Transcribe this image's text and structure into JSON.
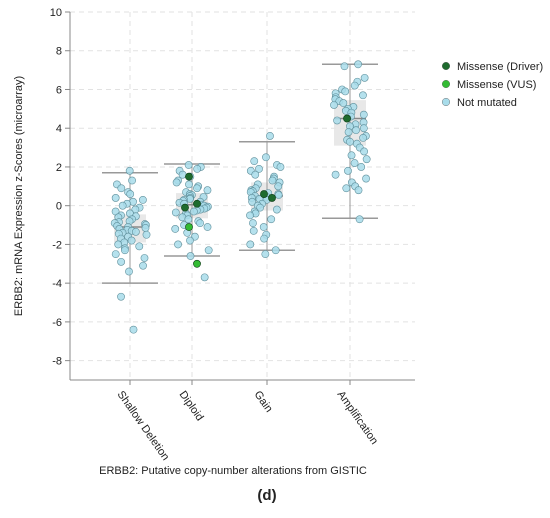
{
  "panel_label": "(d)",
  "chart_data": {
    "type": "scatter",
    "subtype": "box-and-jitter",
    "categories": [
      "Shallow Deletion",
      "Diploid",
      "Gain",
      "Amplification"
    ],
    "xlabel": "ERBB2: Putative copy-number alterations from GISTIC",
    "ylabel": "ERBB2: mRNA Expression z-Scores (microarray)",
    "ylim": [
      -9,
      10
    ],
    "yticks": [
      10,
      8,
      6,
      4,
      2,
      0,
      -2,
      -4,
      -6,
      -8
    ],
    "grid": true,
    "legend_position": "right",
    "legend": [
      {
        "name": "Missense (Driver)",
        "color": "#1e6b2e"
      },
      {
        "name": "Missense (VUS)",
        "color": "#33bb33"
      },
      {
        "name": "Not mutated",
        "color": "#a8dcea"
      }
    ],
    "boxes": [
      {
        "category": "Shallow Deletion",
        "whisker_low": -4.0,
        "q1": -1.9,
        "median": -1.1,
        "q3": -0.45,
        "whisker_high": 1.7
      },
      {
        "category": "Diploid",
        "whisker_low": -2.6,
        "q1": -0.65,
        "median": 0.05,
        "q3": 0.65,
        "whisker_high": 2.15
      },
      {
        "category": "Gain",
        "whisker_low": -2.3,
        "q1": -0.25,
        "median": 0.5,
        "q3": 1.2,
        "whisker_high": 3.3
      },
      {
        "category": "Amplification",
        "whisker_low": -0.65,
        "q1": 3.1,
        "median": 4.5,
        "q3": 5.45,
        "whisker_high": 7.3
      }
    ],
    "series": [
      {
        "name": "Not mutated",
        "points": [
          {
            "category": "Shallow Deletion",
            "values": [
              1.8,
              1.3,
              1.1,
              0.9,
              0.7,
              0.6,
              0.4,
              0.3,
              0.2,
              0.1,
              0.0,
              -0.1,
              -0.2,
              -0.3,
              -0.4,
              -0.5,
              -0.55,
              -0.6,
              -0.7,
              -0.8,
              -0.85,
              -0.9,
              -0.95,
              -1.0,
              -1.05,
              -1.1,
              -1.15,
              -1.2,
              -1.25,
              -1.3,
              -1.35,
              -1.4,
              -1.45,
              -1.5,
              -1.6,
              -1.7,
              -1.8,
              -1.9,
              -2.0,
              -2.1,
              -2.2,
              -2.3,
              -2.5,
              -2.7,
              -2.9,
              -3.1,
              -3.4,
              -4.7,
              -6.4
            ]
          },
          {
            "category": "Diploid",
            "values": [
              2.1,
              2.0,
              1.9,
              1.8,
              1.6,
              1.5,
              1.3,
              1.2,
              1.1,
              1.0,
              0.9,
              0.8,
              0.7,
              0.6,
              0.55,
              0.5,
              0.45,
              0.4,
              0.35,
              0.3,
              0.25,
              0.2,
              0.15,
              0.1,
              0.05,
              0.0,
              -0.05,
              -0.1,
              -0.15,
              -0.2,
              -0.25,
              -0.3,
              -0.35,
              -0.4,
              -0.5,
              -0.6,
              -0.7,
              -0.8,
              -0.9,
              -1.0,
              -1.1,
              -1.2,
              -1.4,
              -1.6,
              -1.8,
              -2.0,
              -2.3,
              -2.6,
              -3.7
            ]
          },
          {
            "category": "Gain",
            "values": [
              3.6,
              2.5,
              2.3,
              2.1,
              2.0,
              1.9,
              1.8,
              1.6,
              1.5,
              1.4,
              1.3,
              1.2,
              1.1,
              1.0,
              0.9,
              0.8,
              0.75,
              0.7,
              0.65,
              0.6,
              0.55,
              0.5,
              0.45,
              0.4,
              0.35,
              0.3,
              0.2,
              0.1,
              0.0,
              -0.1,
              -0.2,
              -0.3,
              -0.4,
              -0.5,
              -0.7,
              -0.9,
              -1.1,
              -1.3,
              -1.5,
              -1.7,
              -2.0,
              -2.3,
              -2.5
            ]
          },
          {
            "category": "Amplification",
            "values": [
              7.3,
              7.2,
              6.6,
              6.4,
              6.2,
              6.0,
              5.9,
              5.8,
              5.7,
              5.6,
              5.5,
              5.4,
              5.3,
              5.2,
              5.1,
              5.0,
              4.9,
              4.8,
              4.7,
              4.6,
              4.5,
              4.4,
              4.3,
              4.2,
              4.1,
              4.0,
              3.9,
              3.8,
              3.6,
              3.5,
              3.4,
              3.3,
              3.2,
              3.0,
              2.8,
              2.6,
              2.4,
              2.2,
              2.0,
              1.8,
              1.6,
              1.4,
              1.2,
              1.0,
              0.9,
              0.8,
              -0.7
            ]
          }
        ]
      },
      {
        "name": "Missense (Driver)",
        "points": [
          {
            "category": "Diploid",
            "values": [
              1.5,
              0.1,
              -0.1
            ]
          },
          {
            "category": "Gain",
            "values": [
              0.6,
              0.4
            ]
          },
          {
            "category": "Amplification",
            "values": [
              4.5
            ]
          }
        ]
      },
      {
        "name": "Missense (VUS)",
        "points": [
          {
            "category": "Diploid",
            "values": [
              -1.1,
              -3.0
            ]
          }
        ]
      }
    ]
  }
}
